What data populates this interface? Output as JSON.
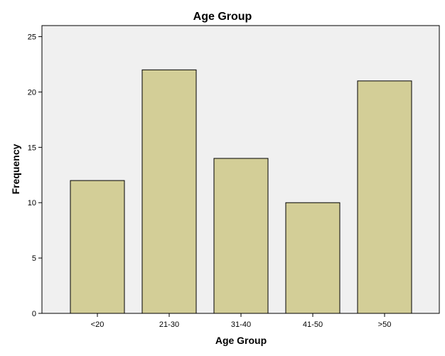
{
  "chart_data": {
    "type": "bar",
    "title": "Age Group",
    "xlabel": "Age Group",
    "ylabel": "Frequency",
    "categories": [
      "<20",
      "21-30",
      "31-40",
      "41-50",
      ">50"
    ],
    "values": [
      12,
      22,
      14,
      10,
      21
    ],
    "ylim": [
      0,
      26
    ],
    "yticks": [
      "0",
      "5",
      "10",
      "15",
      "20",
      "25"
    ],
    "grid": false,
    "colors": {
      "bar_fill": "#d3ce97",
      "bar_stroke": "#000000",
      "plot_background": "#f0f0f0",
      "axis": "#000000"
    }
  }
}
